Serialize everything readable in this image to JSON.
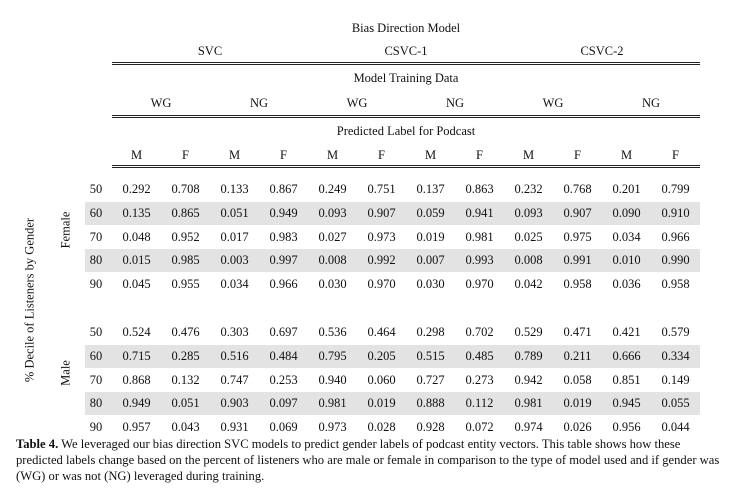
{
  "header": {
    "top": "Bias Direction Model",
    "models": [
      "SVC",
      "CSVC-1",
      "CSVC-2"
    ],
    "training": "Model Training Data",
    "training_groups": [
      "WG",
      "NG",
      "WG",
      "NG",
      "WG",
      "NG"
    ],
    "predicted": "Predicted Label for Podcast",
    "labels": [
      "M",
      "F",
      "M",
      "F",
      "M",
      "F",
      "M",
      "F",
      "M",
      "F",
      "M",
      "F"
    ]
  },
  "row_axis_label": "% Decile of Listeners by Gender",
  "groups": [
    {
      "name": "Female",
      "rows": [
        {
          "decile": "50",
          "values": [
            "0.292",
            "0.708",
            "0.133",
            "0.867",
            "0.249",
            "0.751",
            "0.137",
            "0.863",
            "0.232",
            "0.768",
            "0.201",
            "0.799"
          ]
        },
        {
          "decile": "60",
          "values": [
            "0.135",
            "0.865",
            "0.051",
            "0.949",
            "0.093",
            "0.907",
            "0.059",
            "0.941",
            "0.093",
            "0.907",
            "0.090",
            "0.910"
          ]
        },
        {
          "decile": "70",
          "values": [
            "0.048",
            "0.952",
            "0.017",
            "0.983",
            "0.027",
            "0.973",
            "0.019",
            "0.981",
            "0.025",
            "0.975",
            "0.034",
            "0.966"
          ]
        },
        {
          "decile": "80",
          "values": [
            "0.015",
            "0.985",
            "0.003",
            "0.997",
            "0.008",
            "0.992",
            "0.007",
            "0.993",
            "0.008",
            "0.991",
            "0.010",
            "0.990"
          ]
        },
        {
          "decile": "90",
          "values": [
            "0.045",
            "0.955",
            "0.034",
            "0.966",
            "0.030",
            "0.970",
            "0.030",
            "0.970",
            "0.042",
            "0.958",
            "0.036",
            "0.958"
          ]
        }
      ]
    },
    {
      "name": "Male",
      "rows": [
        {
          "decile": "50",
          "values": [
            "0.524",
            "0.476",
            "0.303",
            "0.697",
            "0.536",
            "0.464",
            "0.298",
            "0.702",
            "0.529",
            "0.471",
            "0.421",
            "0.579"
          ]
        },
        {
          "decile": "60",
          "values": [
            "0.715",
            "0.285",
            "0.516",
            "0.484",
            "0.795",
            "0.205",
            "0.515",
            "0.485",
            "0.789",
            "0.211",
            "0.666",
            "0.334"
          ]
        },
        {
          "decile": "70",
          "values": [
            "0.868",
            "0.132",
            "0.747",
            "0.253",
            "0.940",
            "0.060",
            "0.727",
            "0.273",
            "0.942",
            "0.058",
            "0.851",
            "0.149"
          ]
        },
        {
          "decile": "80",
          "values": [
            "0.949",
            "0.051",
            "0.903",
            "0.097",
            "0.981",
            "0.019",
            "0.888",
            "0.112",
            "0.981",
            "0.019",
            "0.945",
            "0.055"
          ]
        },
        {
          "decile": "90",
          "values": [
            "0.957",
            "0.043",
            "0.931",
            "0.069",
            "0.973",
            "0.028",
            "0.928",
            "0.072",
            "0.974",
            "0.026",
            "0.956",
            "0.044"
          ]
        }
      ]
    }
  ],
  "caption": {
    "label": "Table 4.",
    "text": " We leveraged our bias direction SVC models to predict gender labels of podcast entity vectors. This table shows how these predicted labels change based on the percent of listeners who are male or female in comparison to the type of model used and if gender was (WG) or was not (NG) leveraged during training."
  }
}
